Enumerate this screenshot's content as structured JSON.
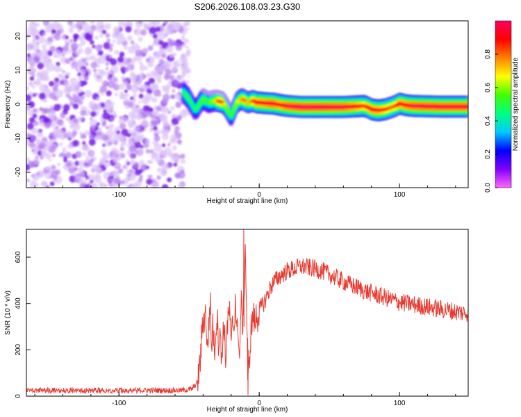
{
  "chart_data": [
    {
      "type": "heatmap",
      "title": "S206.2026.108.03.23.G30",
      "xlabel": "Height of straight line (km)",
      "ylabel": "Frequency (Hz)",
      "xlim": [
        -166,
        149
      ],
      "ylim": [
        -24.5,
        24.5
      ],
      "xticks": [
        -100,
        0,
        100
      ],
      "yticks": [
        20,
        10,
        0,
        -10,
        -20
      ],
      "noise_region_x": [
        -166,
        -54
      ],
      "ridge": {
        "description": "frequency track vs height",
        "x": [
          -54,
          -52,
          -50,
          -48,
          -46,
          -44,
          -42,
          -40,
          -38,
          -36,
          -34,
          -32,
          -30,
          -28,
          -26,
          -24,
          -22,
          -20,
          -18,
          -16,
          -14,
          -12,
          -10,
          -8,
          -6,
          -4,
          -2,
          0,
          5,
          10,
          15,
          20,
          30,
          40,
          50,
          60,
          70,
          75,
          78,
          80,
          85,
          90,
          95,
          98,
          100,
          105,
          110,
          120,
          130,
          140,
          149
        ],
        "y": [
          3.5,
          2.5,
          1.5,
          0.0,
          -1.5,
          -1.0,
          0.5,
          1.5,
          1.0,
          0.5,
          0.8,
          1.0,
          1.0,
          0.8,
          0.5,
          -0.5,
          -2.0,
          -3.5,
          -1.5,
          0.5,
          1.2,
          1.5,
          1.0,
          0.5,
          0.8,
          1.0,
          0.5,
          0.5,
          0.3,
          0.2,
          -0.2,
          -0.5,
          -0.8,
          -0.8,
          -0.8,
          -0.8,
          -0.6,
          -0.5,
          -1.0,
          -1.5,
          -1.8,
          -1.5,
          -0.8,
          -0.3,
          0.2,
          -0.3,
          -0.5,
          -0.6,
          -0.7,
          -0.7,
          -0.7
        ],
        "amplitude": [
          0.45,
          0.5,
          0.5,
          0.45,
          0.45,
          0.5,
          0.5,
          0.55,
          0.55,
          0.5,
          0.6,
          0.6,
          0.75,
          0.85,
          0.8,
          0.6,
          0.55,
          0.5,
          0.55,
          0.6,
          0.7,
          0.75,
          0.8,
          0.7,
          0.75,
          0.85,
          0.9,
          0.9,
          0.92,
          0.95,
          0.9,
          0.95,
          0.98,
          0.98,
          0.97,
          0.96,
          0.9,
          0.85,
          0.88,
          0.9,
          0.9,
          0.85,
          0.8,
          0.85,
          0.9,
          0.92,
          0.95,
          0.96,
          0.96,
          0.96,
          0.96
        ]
      },
      "colorbar": {
        "label": "Normalized spectral amplitude",
        "range": [
          0.0,
          1.0
        ],
        "ticks": [
          "0.0",
          "0.2",
          "0.4",
          "0.6",
          "0.8"
        ],
        "colors": [
          "#ff66ff",
          "#8000ff",
          "#0000ff",
          "#00ccff",
          "#00ff80",
          "#40ff00",
          "#ffff00",
          "#ff8000",
          "#ff0000",
          "#ff0060"
        ]
      }
    },
    {
      "type": "line",
      "xlabel": "Height of straight line (km)",
      "ylabel": "SNR (10 * v/v)",
      "xlim": [
        -166,
        149
      ],
      "ylim": [
        0,
        720
      ],
      "xticks": [
        -100,
        0,
        100
      ],
      "yticks": [
        0,
        200,
        400,
        600
      ],
      "color": "#e8392f",
      "series": [
        {
          "name": "SNR",
          "x": [
            -166,
            -150,
            -130,
            -110,
            -90,
            -70,
            -55,
            -48,
            -44,
            -42,
            -41,
            -40,
            -38,
            -37,
            -36,
            -35,
            -34,
            -33,
            -32,
            -31,
            -30,
            -29,
            -28,
            -27,
            -26,
            -25,
            -24,
            -23,
            -22,
            -21,
            -20,
            -19,
            -18,
            -17,
            -16,
            -15,
            -14,
            -13,
            -12,
            -11,
            -10,
            -9,
            -8,
            -7,
            -6,
            -5,
            -4,
            -3,
            -2,
            -1,
            0,
            2,
            4,
            6,
            8,
            10,
            15,
            20,
            25,
            30,
            35,
            40,
            45,
            50,
            55,
            60,
            65,
            70,
            75,
            80,
            85,
            90,
            95,
            100,
            105,
            110,
            115,
            120,
            125,
            130,
            135,
            140,
            145,
            149
          ],
          "y": [
            25,
            25,
            25,
            25,
            25,
            25,
            25,
            30,
            60,
            150,
            260,
            320,
            360,
            180,
            300,
            420,
            200,
            330,
            180,
            280,
            350,
            230,
            300,
            140,
            260,
            310,
            150,
            290,
            330,
            380,
            180,
            340,
            280,
            440,
            250,
            320,
            130,
            420,
            300,
            400,
            660,
            380,
            30,
            150,
            280,
            320,
            350,
            300,
            360,
            340,
            370,
            390,
            410,
            440,
            470,
            490,
            520,
            540,
            550,
            560,
            555,
            550,
            540,
            525,
            510,
            495,
            480,
            470,
            455,
            445,
            435,
            425,
            415,
            405,
            400,
            395,
            390,
            385,
            380,
            375,
            370,
            365,
            360,
            360
          ]
        }
      ]
    }
  ]
}
